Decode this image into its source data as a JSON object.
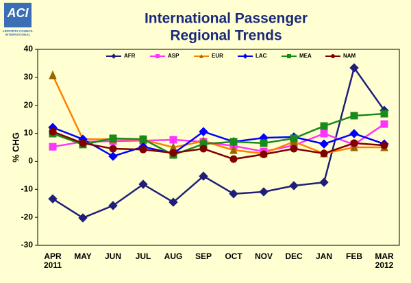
{
  "logo": {
    "name": "ACI",
    "subtitle": [
      "AIRPORTS COUNCIL",
      "INTERNATIONAL"
    ]
  },
  "chart_data": {
    "type": "line",
    "title": [
      "International Passenger",
      "Regional Trends"
    ],
    "y_label": "% CHG",
    "categories": [
      "APR 2011",
      "MAY",
      "JUN",
      "JUL",
      "AUG",
      "SEP",
      "OCT",
      "NOV",
      "DEC",
      "JAN",
      "FEB",
      "MAR 2012"
    ],
    "ylim": [
      -30,
      40
    ],
    "yticks": [
      -30,
      -20,
      -10,
      0,
      10,
      20,
      30,
      40
    ],
    "grid": false,
    "legend": "top",
    "series": [
      {
        "name": "AFR",
        "color": "#1f1f7a",
        "marker": "diamond",
        "values": [
          -13.4,
          -20.2,
          -15.8,
          -8.2,
          -14.6,
          -5.3,
          -11.6,
          -10.9,
          -8.7,
          -7.5,
          33.4,
          18.2
        ]
      },
      {
        "name": "ASP",
        "color": "#ff33ff",
        "marker": "square",
        "values": [
          5.2,
          7.0,
          7.2,
          7.4,
          7.7,
          7.0,
          5.5,
          3.5,
          5.7,
          9.9,
          6.0,
          13.3
        ]
      },
      {
        "name": "EUR",
        "color": "#ff8000",
        "marker": "triangle",
        "values": [
          30.7,
          7.9,
          7.9,
          7.7,
          5.0,
          7.2,
          4.0,
          2.8,
          7.0,
          2.8,
          5.0,
          5.0
        ]
      },
      {
        "name": "LAC",
        "color": "#0000ff",
        "marker": "diamond",
        "values": [
          12.1,
          7.9,
          1.8,
          5.2,
          2.8,
          10.6,
          7.0,
          8.4,
          8.7,
          6.2,
          9.9,
          6.2
        ]
      },
      {
        "name": "MEA",
        "color": "#1a8a1a",
        "marker": "square",
        "values": [
          9.9,
          6.0,
          8.2,
          7.9,
          2.3,
          6.2,
          7.0,
          6.5,
          8.2,
          12.6,
          16.3,
          17.0
        ]
      },
      {
        "name": "NAM",
        "color": "#800000",
        "marker": "circle",
        "values": [
          10.6,
          6.5,
          4.5,
          4.2,
          3.0,
          4.5,
          0.8,
          2.5,
          4.5,
          2.8,
          6.5,
          5.7
        ]
      }
    ]
  }
}
